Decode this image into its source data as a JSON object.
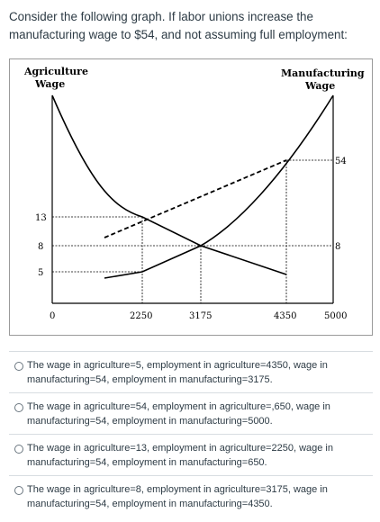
{
  "question": {
    "text": "Consider the following graph. If labor unions increase the manufacturing wage to $54, and not assuming full employment:"
  },
  "graph": {
    "left_axis_title_1": "Agriculture",
    "left_axis_title_2": "Wage",
    "right_axis_title_1": "Manufacturing",
    "right_axis_title_2": "Wage",
    "left_ticks": {
      "t13": "13",
      "t8": "8",
      "t5": "5"
    },
    "right_ticks": {
      "t54": "54",
      "t8": "8"
    },
    "x_ticks": {
      "t0": "0",
      "t2250": "2250",
      "t3175": "3175",
      "t4350": "4350",
      "t5000": "5000"
    }
  },
  "answers": [
    {
      "text": "The wage in agriculture=5, employment in agriculture=4350, wage in manufacturing=54, employment in manufacturing=3175."
    },
    {
      "text": "The wage in agriculture=54, employment in agriculture=,650, wage in manufacturing=54, employment in manufacturing=5000."
    },
    {
      "text": "The wage in agriculture=13, employment in agriculture=2250, wage in manufacturing=54, employment in manufacturing=650."
    },
    {
      "text": "The wage in agriculture=8, employment in agriculture=3175, wage in manufacturing=54, employment in manufacturing=4350."
    }
  ],
  "colors": {
    "text": "#2d3b45",
    "divider": "#d8dde1",
    "graph_line": "#000000"
  }
}
